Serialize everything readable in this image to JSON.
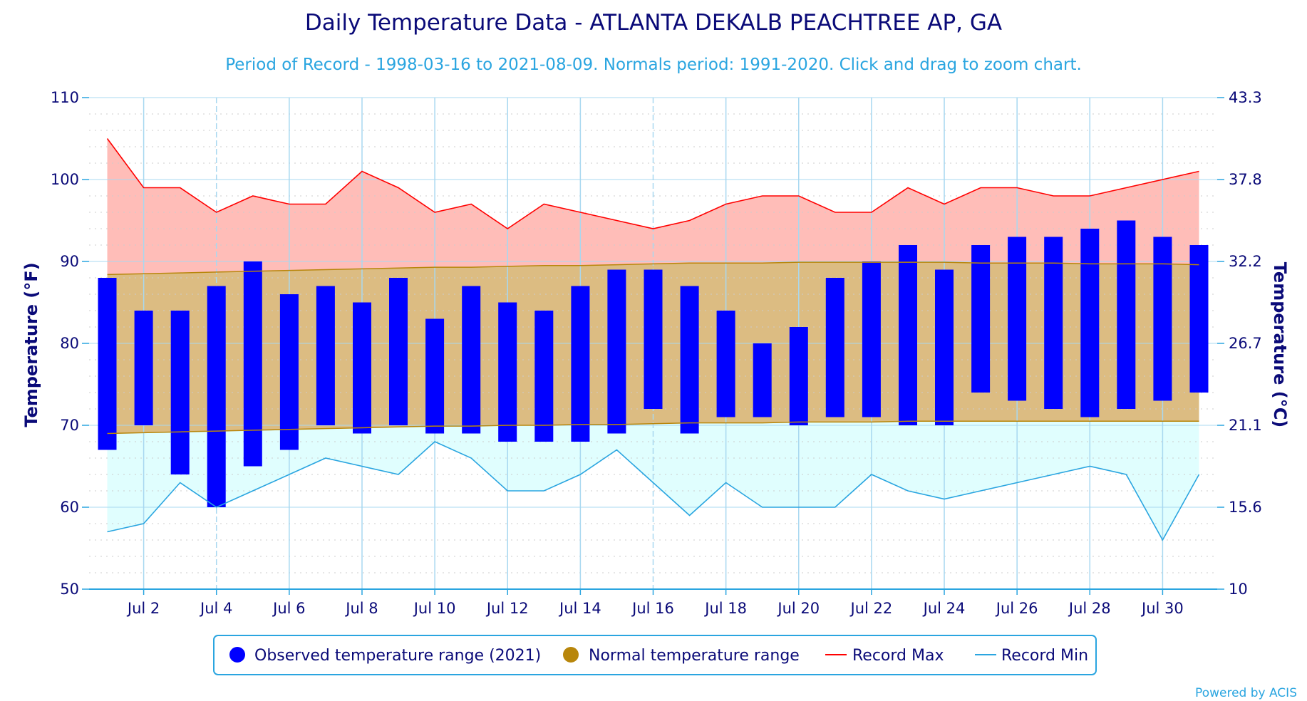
{
  "chart_data": {
    "type": "bar",
    "title": "Daily Temperature Data - ATLANTA DEKALB PEACHTREE AP, GA",
    "subtitle": "Period of Record - 1998-03-16 to 2021-08-09. Normals period: 1991-2020. Click and drag to zoom chart.",
    "ylabel_left": "Temperature (°F)",
    "ylabel_right": "Temperature (°C)",
    "ylim": [
      50,
      110
    ],
    "y_ticks_left": [
      "50",
      "60",
      "70",
      "80",
      "90",
      "100",
      "110"
    ],
    "y_ticks_right": [
      "10",
      "15.6",
      "21.1",
      "26.7",
      "32.2",
      "37.8",
      "43.3"
    ],
    "x": [
      1,
      2,
      3,
      4,
      5,
      6,
      7,
      8,
      9,
      10,
      11,
      12,
      13,
      14,
      15,
      16,
      17,
      18,
      19,
      20,
      21,
      22,
      23,
      24,
      25,
      26,
      27,
      28,
      29,
      30,
      31
    ],
    "x_tick_days": [
      2,
      4,
      6,
      8,
      10,
      12,
      14,
      16,
      18,
      20,
      22,
      24,
      26,
      28,
      30
    ],
    "x_tick_labels": [
      "Jul 2",
      "Jul 4",
      "Jul 6",
      "Jul 8",
      "Jul 10",
      "Jul 12",
      "Jul 14",
      "Jul 16",
      "Jul 18",
      "Jul 20",
      "Jul 22",
      "Jul 24",
      "Jul 26",
      "Jul 28",
      "Jul 30"
    ],
    "grid": true,
    "legend_position": "bottom",
    "series": [
      {
        "name": "Observed temperature range (2021)",
        "color": "#0000ff",
        "low": [
          67,
          70,
          64,
          60,
          65,
          67,
          70,
          69,
          70,
          69,
          69,
          68,
          68,
          68,
          69,
          72,
          69,
          71,
          71,
          70,
          71,
          71,
          70,
          70,
          74,
          73,
          72,
          71,
          72,
          73,
          74
        ],
        "high": [
          88,
          84,
          84,
          87,
          90,
          86,
          87,
          85,
          88,
          83,
          87,
          85,
          84,
          87,
          89,
          89,
          87,
          84,
          80,
          82,
          88,
          90,
          92,
          89,
          92,
          93,
          93,
          94,
          95,
          93,
          92
        ]
      },
      {
        "name": "Normal temperature range",
        "color": "#b8860b",
        "low": [
          69.0,
          69.1,
          69.2,
          69.3,
          69.4,
          69.5,
          69.6,
          69.7,
          69.8,
          69.9,
          69.9,
          70.0,
          70.0,
          70.1,
          70.1,
          70.2,
          70.3,
          70.3,
          70.3,
          70.4,
          70.4,
          70.4,
          70.5,
          70.5,
          70.5,
          70.5,
          70.5,
          70.5,
          70.5,
          70.5,
          70.5
        ],
        "high": [
          88.4,
          88.5,
          88.6,
          88.7,
          88.8,
          88.9,
          89.0,
          89.1,
          89.2,
          89.3,
          89.3,
          89.4,
          89.5,
          89.5,
          89.6,
          89.7,
          89.8,
          89.8,
          89.8,
          89.9,
          89.9,
          89.9,
          89.9,
          89.9,
          89.8,
          89.8,
          89.8,
          89.7,
          89.7,
          89.7,
          89.6
        ]
      },
      {
        "name": "Record Max",
        "color": "#ff0000",
        "values": [
          105,
          99,
          99,
          96,
          98,
          97,
          97,
          101,
          99,
          96,
          97,
          94,
          97,
          96,
          95,
          94,
          95,
          97,
          98,
          98,
          96,
          96,
          99,
          97,
          99,
          99,
          98,
          98,
          99,
          100,
          101
        ]
      },
      {
        "name": "Record Min",
        "color": "#2aa5e0",
        "values": [
          57,
          58,
          63,
          60,
          62,
          64,
          66,
          65,
          64,
          68,
          66,
          62,
          62,
          64,
          67,
          63,
          59,
          63,
          60,
          60,
          60,
          64,
          62,
          61,
          62,
          63,
          64,
          65,
          64,
          56,
          64
        ]
      }
    ],
    "credit": "Powered by ACIS"
  }
}
